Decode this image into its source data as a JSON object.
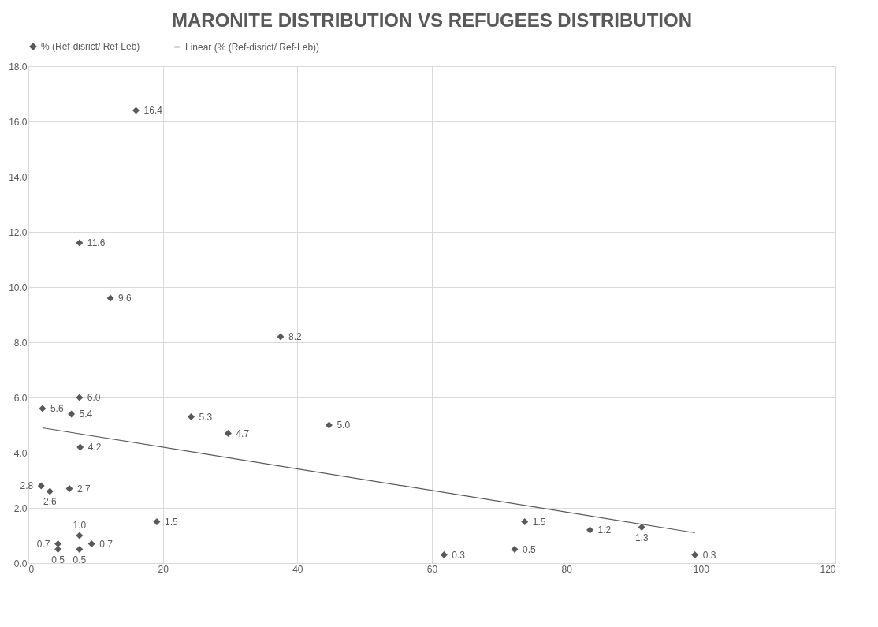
{
  "chart_data": {
    "type": "scatter",
    "title": "MARONITE DISTRIBUTION VS REFUGEES DISTRIBUTION",
    "series": [
      {
        "name": "% (Ref-disrict/ Ref-Leb)",
        "color": "#595959",
        "marker": "diamond",
        "value_labels": [
          "16.4",
          "11.6",
          "9.6",
          "8.2",
          "6.0",
          "5.6",
          "5.4",
          "5.3",
          "4.7",
          "5.0",
          "4.2",
          "2.8",
          "2.6",
          "2.7",
          "1.5",
          "1.0",
          "0.7",
          "0.5",
          "0.7",
          "0.5",
          "0.3",
          "0.5",
          "1.5",
          "1.2",
          "1.3",
          "0.3"
        ],
        "x": [
          16.0,
          7.6,
          12.2,
          37.5,
          7.6,
          2.1,
          6.4,
          24.2,
          29.7,
          44.7,
          7.7,
          1.9,
          3.2,
          6.1,
          19.1,
          7.6,
          4.4,
          4.4,
          9.4,
          7.6,
          61.8,
          72.3,
          73.8,
          83.5,
          91.2,
          99.1
        ],
        "values": [
          16.4,
          11.6,
          9.6,
          8.2,
          6.0,
          5.6,
          5.4,
          5.3,
          4.7,
          5.0,
          4.2,
          2.8,
          2.6,
          2.7,
          1.5,
          1.0,
          0.7,
          0.5,
          0.7,
          0.5,
          0.3,
          0.5,
          1.5,
          1.2,
          1.3,
          0.3
        ]
      },
      {
        "name": "Linear (% (Ref-disrict/ Ref-Leb))",
        "type": "line",
        "color": "#595959",
        "line_style": "solid",
        "x": [
          2.1,
          99.1
        ],
        "values": [
          4.9,
          1.1
        ]
      }
    ],
    "legend": "top",
    "grid": true,
    "xlim": [
      0,
      120
    ],
    "xticks": [
      0,
      20,
      40,
      60,
      80,
      100,
      120
    ],
    "ylim": [
      0,
      18
    ],
    "yticks": [
      {
        "value": 0,
        "label": "0.0"
      },
      {
        "value": 2,
        "label": "2.0"
      },
      {
        "value": 4,
        "label": "4.0"
      },
      {
        "value": 6,
        "label": "6.0"
      },
      {
        "value": 8,
        "label": "8.0"
      },
      {
        "value": 10,
        "label": "10.0"
      },
      {
        "value": 12,
        "label": "12.0"
      },
      {
        "value": 14,
        "label": "14.0"
      },
      {
        "value": 16,
        "label": "16.0"
      },
      {
        "value": 18,
        "label": "18.0"
      }
    ]
  }
}
